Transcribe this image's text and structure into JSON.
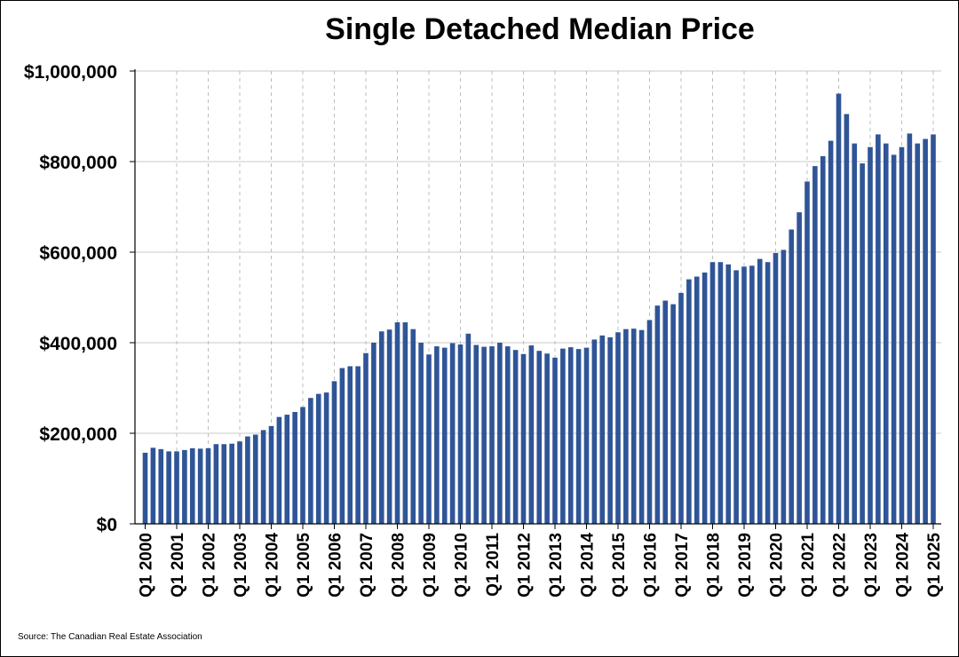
{
  "chart_data": {
    "type": "bar",
    "title": "Single Detached Median Price",
    "source": "Source: The Canadian Real Estate Association",
    "ylim": [
      0,
      1000000
    ],
    "yticks": [
      "$0",
      "$200,000",
      "$400,000",
      "$600,000",
      "$800,000",
      "$1,000,000"
    ],
    "ytick_values": [
      0,
      200000,
      400000,
      600000,
      800000,
      1000000
    ],
    "xtick_labels": [
      "Q1 2000",
      "Q1 2001",
      "Q1 2002",
      "Q1 2003",
      "Q1 2004",
      "Q1 2005",
      "Q1 2006",
      "Q1 2007",
      "Q1 2008",
      "Q1 2009",
      "Q1 2010",
      "Q1 2011",
      "Q1 2012",
      "Q1 2013",
      "Q1 2014",
      "Q1 2015",
      "Q1 2016",
      "Q1 2017",
      "Q1 2018",
      "Q1 2019",
      "Q1 2020",
      "Q1 2021",
      "Q1 2022",
      "Q1 2023",
      "Q1 2024",
      "Q1 2025"
    ],
    "grid": true,
    "bar_color": "#2f5597",
    "categories": [
      "Q1 2000",
      "Q2 2000",
      "Q3 2000",
      "Q4 2000",
      "Q1 2001",
      "Q2 2001",
      "Q3 2001",
      "Q4 2001",
      "Q1 2002",
      "Q2 2002",
      "Q3 2002",
      "Q4 2002",
      "Q1 2003",
      "Q2 2003",
      "Q3 2003",
      "Q4 2003",
      "Q1 2004",
      "Q2 2004",
      "Q3 2004",
      "Q4 2004",
      "Q1 2005",
      "Q2 2005",
      "Q3 2005",
      "Q4 2005",
      "Q1 2006",
      "Q2 2006",
      "Q3 2006",
      "Q4 2006",
      "Q1 2007",
      "Q2 2007",
      "Q3 2007",
      "Q4 2007",
      "Q1 2008",
      "Q2 2008",
      "Q3 2008",
      "Q4 2008",
      "Q1 2009",
      "Q2 2009",
      "Q3 2009",
      "Q4 2009",
      "Q1 2010",
      "Q2 2010",
      "Q3 2010",
      "Q4 2010",
      "Q1 2011",
      "Q2 2011",
      "Q3 2011",
      "Q4 2011",
      "Q1 2012",
      "Q2 2012",
      "Q3 2012",
      "Q4 2012",
      "Q1 2013",
      "Q2 2013",
      "Q3 2013",
      "Q4 2013",
      "Q1 2014",
      "Q2 2014",
      "Q3 2014",
      "Q4 2014",
      "Q1 2015",
      "Q2 2015",
      "Q3 2015",
      "Q4 2015",
      "Q1 2016",
      "Q2 2016",
      "Q3 2016",
      "Q4 2016",
      "Q1 2017",
      "Q2 2017",
      "Q3 2017",
      "Q4 2017",
      "Q1 2018",
      "Q2 2018",
      "Q3 2018",
      "Q4 2018",
      "Q1 2019",
      "Q2 2019",
      "Q3 2019",
      "Q4 2019",
      "Q1 2020",
      "Q2 2020",
      "Q3 2020",
      "Q4 2020",
      "Q1 2021",
      "Q2 2021",
      "Q3 2021",
      "Q4 2021",
      "Q1 2022",
      "Q2 2022",
      "Q3 2022",
      "Q4 2022",
      "Q1 2023",
      "Q2 2023",
      "Q3 2023",
      "Q4 2023",
      "Q1 2024",
      "Q2 2024",
      "Q3 2024",
      "Q4 2024",
      "Q1 2025"
    ],
    "values": [
      157000,
      168000,
      165000,
      160000,
      160000,
      163000,
      167000,
      166000,
      167000,
      176000,
      176000,
      177000,
      182000,
      193000,
      197000,
      207000,
      216000,
      236000,
      241000,
      247000,
      258000,
      278000,
      287000,
      290000,
      315000,
      344000,
      348000,
      348000,
      377000,
      400000,
      425000,
      429000,
      445000,
      445000,
      430000,
      400000,
      374000,
      392000,
      389000,
      399000,
      396000,
      420000,
      395000,
      391000,
      392000,
      400000,
      392000,
      384000,
      375000,
      394000,
      382000,
      376000,
      367000,
      387000,
      390000,
      386000,
      389000,
      407000,
      416000,
      412000,
      423000,
      430000,
      431000,
      428000,
      450000,
      482000,
      493000,
      485000,
      510000,
      540000,
      546000,
      555000,
      578000,
      578000,
      573000,
      560000,
      568000,
      570000,
      585000,
      578000,
      598000,
      605000,
      650000,
      688000,
      756000,
      790000,
      812000,
      846000,
      950000,
      905000,
      840000,
      796000,
      832000,
      860000,
      840000,
      815000,
      832000,
      862000,
      840000,
      850000,
      860000
    ]
  }
}
